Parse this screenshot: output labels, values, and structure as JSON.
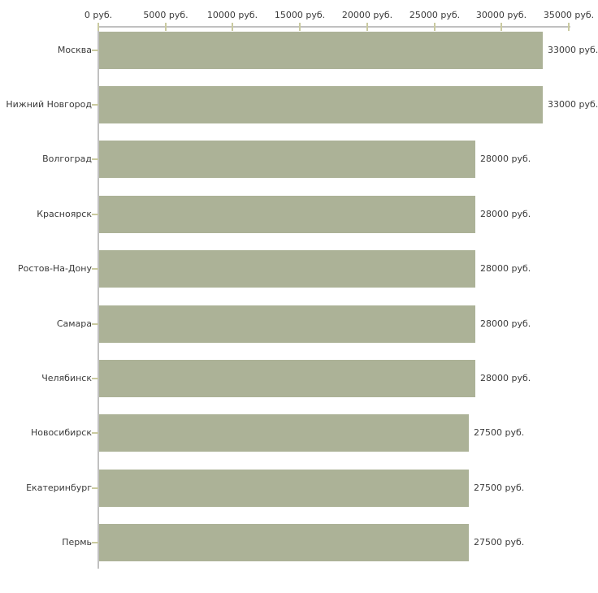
{
  "chart_data": {
    "type": "bar",
    "orientation": "horizontal",
    "title": "",
    "xlabel": "",
    "ylabel": "",
    "grid": false,
    "legend": false,
    "categories": [
      "Москва",
      "Нижний Новгород",
      "Волгоград",
      "Красноярск",
      "Ростов-На-Дону",
      "Самара",
      "Челябинск",
      "Новосибирск",
      "Екатеринбург",
      "Пермь"
    ],
    "values": [
      33000,
      33000,
      28000,
      28000,
      28000,
      28000,
      28000,
      27500,
      27500,
      27500
    ],
    "value_labels": [
      "33000 руб.",
      "33000 руб.",
      "28000 руб.",
      "28000 руб.",
      "28000 руб.",
      "28000 руб.",
      "28000 руб.",
      "27500 руб.",
      "27500 руб.",
      "27500 руб."
    ],
    "x_axis": {
      "min": 0,
      "max": 35000,
      "tick_values": [
        0,
        5000,
        10000,
        15000,
        20000,
        25000,
        30000,
        35000
      ],
      "tick_labels": [
        "0 руб.",
        "5000 руб.",
        "10000 руб.",
        "15000 руб.",
        "20000 руб.",
        "25000 руб.",
        "30000 руб.",
        "35000 руб."
      ]
    }
  },
  "colors": {
    "bar_fill": "#acb297",
    "axis_line": "#c0c0c0",
    "tick_mark": "#cacaa0",
    "text": "#3a3a3a",
    "background": "#ffffff"
  }
}
